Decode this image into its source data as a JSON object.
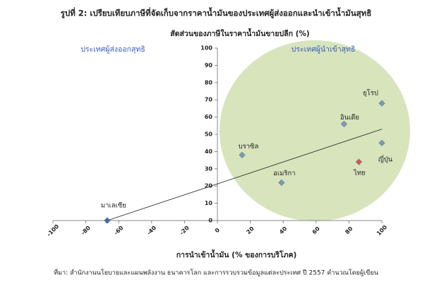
{
  "chart_data": {
    "type": "scatter",
    "title": "รูปที่ 2: เปรียบเทียบภาษีที่จัดเก็บจากราคาน้ำมันของประเทศผู้ส่งออกและนำเข้าน้ำมันสุทธิ",
    "y_label": "สัดส่วนของภาษีในราคาน้ำมันขายปลีก (%)",
    "x_label": "การนำเข้าน้ำมัน (% ของการบริโภค)",
    "annotations": [
      "ประเทศผู้ส่งออกสุทธิ",
      "ประเทศผู้นำเข้าสุทธิ"
    ],
    "source": "ที่มา: สำนักงานนโยบายและแผนพลังงาน ธนาคารโลก และการรวบรวมข้อมูลแต่ละประเทศ ปี 2557 คำนวณโดยผู้เขียน",
    "points": [
      {
        "name": "มาเลเซีย",
        "x": -67,
        "y": 0,
        "color": "#3a6fb4"
      },
      {
        "name": "บราซิล",
        "x": 15,
        "y": 38,
        "color": "#7b9cb8"
      },
      {
        "name": "อเมริกา",
        "x": 39,
        "y": 22,
        "color": "#7b9cb8"
      },
      {
        "name": "อินเดีย",
        "x": 77,
        "y": 56,
        "color": "#7b9cb8"
      },
      {
        "name": "ยุโรป",
        "x": 100,
        "y": 68,
        "color": "#7b9cb8"
      },
      {
        "name": "ญี่ปุ่น",
        "x": 100,
        "y": 45,
        "color": "#7b9cb8"
      },
      {
        "name": "ไทย",
        "x": 86,
        "y": 34,
        "color": "#d9534f"
      }
    ],
    "trendline": {
      "x": [
        -67,
        100
      ],
      "y": [
        0,
        53
      ]
    },
    "xlim": [
      -100,
      100
    ],
    "xticks": [
      -100,
      -80,
      -60,
      -40,
      -20,
      0,
      20,
      40,
      60,
      80,
      100
    ],
    "ylim": [
      0,
      100
    ],
    "yticks": [
      0,
      10,
      20,
      30,
      40,
      50,
      60,
      70,
      80,
      90,
      100
    ]
  }
}
